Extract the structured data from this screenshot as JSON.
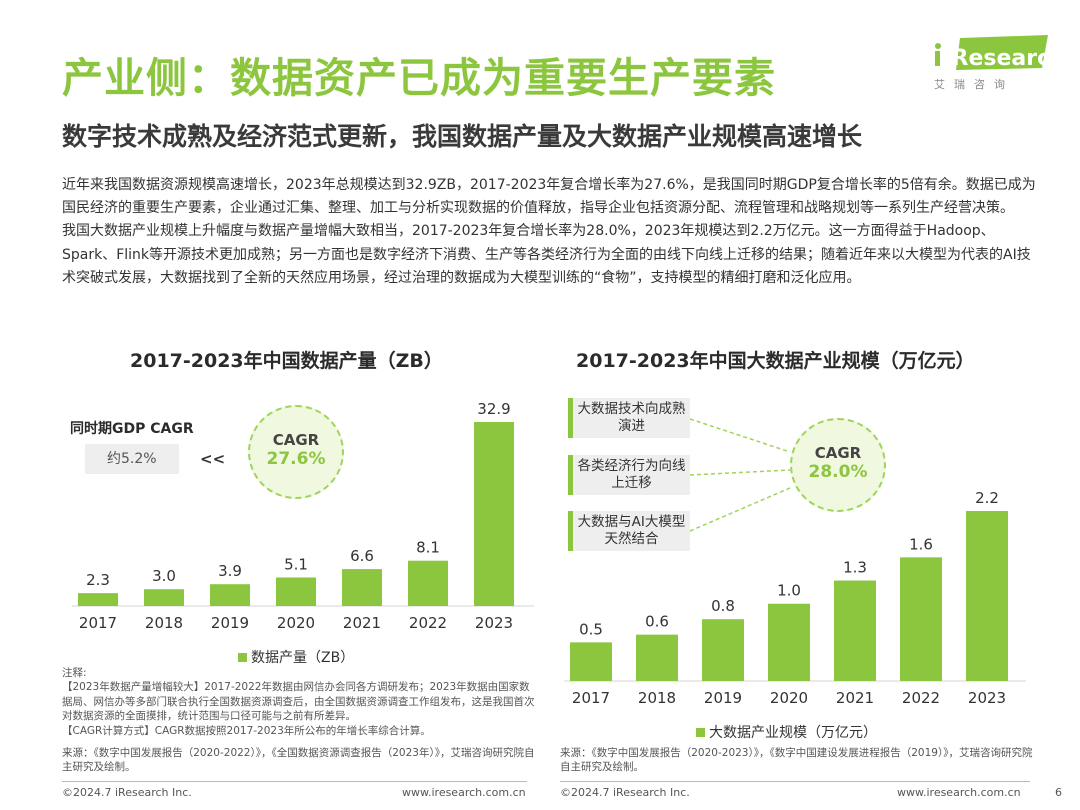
{
  "title": "产业侧：数据资产已成为重要生产要素",
  "subtitle": "数字技术成熟及经济范式更新，我国数据产量及大数据产业规模高速增长",
  "logo": {
    "brand": "iResearch",
    "cn": "艾瑞咨询"
  },
  "intro": [
    "近年来我国数据资源规模高速增长，2023年总规模达到32.9ZB，2017-2023年复合增长率为27.6%，是我国同时期GDP复合增长率的5倍有余。数据已成为国民经济的重要生产要素，企业通过汇集、整理、加工与分析实现数据的价值释放，指导企业包括资源分配、流程管理和战略规划等一系列生产经营决策。",
    "我国大数据产业规模上升幅度与数据产量增幅大致相当，2017-2023年复合增长率为28.0%，2023年规模达到2.2万亿元。这一方面得益于Hadoop、Spark、Flink等开源技术更加成熟；另一方面也是数字经济下消费、生产等各类经济行为全面的由线下向线上迁移的结果；随着近年来以大模型为代表的AI技术突破式发展，大数据找到了全新的天然应用场景，经过治理的数据成为大模型训练的“食物”，支持模型的精细打磨和泛化应用。"
  ],
  "left_panel": {
    "gdp_label": "同时期GDP CAGR",
    "gdp_value": "约5.2%",
    "compare": "<<",
    "cagr_label": "CAGR",
    "cagr_value": "27.6%",
    "legend": "数据产量（ZB）",
    "notes": [
      "注释:",
      "【2023年数据产量增幅较大】2017-2022年数据由网信办会同各方调研发布；2023年数据由国家数据局、网信办等多部门联合执行全国数据资源调查后，由全国数据资源调查工作组发布，这是我国首次对数据资源的全面摸排，统计范围与口径可能与之前有所差异。",
      "【CAGR计算方式】CAGR数据按照2017-2023年所公布的年增长率综合计算。"
    ],
    "source": "来源：《数字中国发展报告（2020-2022）》，《全国数据资源调查报告（2023年）》，艾瑞咨询研究院自主研究及绘制。"
  },
  "right_panel": {
    "drivers": [
      "大数据技术向成熟演进",
      "各类经济行为向线上迁移",
      "大数据与AI大模型天然结合"
    ],
    "cagr_label": "CAGR",
    "cagr_value": "28.0%",
    "legend": "大数据产业规模（万亿元）",
    "source": "来源：《数字中国发展报告（2020-2023）》，《数字中国建设发展进程报告（2019）》，艾瑞咨询研究院自主研究及绘制。"
  },
  "footer": {
    "copyright": "©2024.7 iResearch Inc.",
    "url": "www.iresearch.com.cn",
    "page": "6"
  },
  "colors": {
    "accent": "#8cc63f",
    "text": "#333333"
  },
  "chart_data": [
    {
      "type": "bar",
      "title": "2017-2023年中国数据产量（ZB）",
      "categories": [
        "2017",
        "2018",
        "2019",
        "2020",
        "2021",
        "2022",
        "2023"
      ],
      "series": [
        {
          "name": "数据产量（ZB）",
          "values": [
            2.3,
            3.0,
            3.9,
            5.1,
            6.6,
            8.1,
            32.9
          ]
        }
      ],
      "value_labels": [
        "2.3",
        "3.0",
        "3.9",
        "5.1",
        "6.6",
        "8.1",
        "32.9"
      ],
      "ylim": [
        0,
        32.9
      ]
    },
    {
      "type": "bar",
      "title": "2017-2023年中国大数据产业规模（万亿元）",
      "categories": [
        "2017",
        "2018",
        "2019",
        "2020",
        "2021",
        "2022",
        "2023"
      ],
      "series": [
        {
          "name": "大数据产业规模（万亿元）",
          "values": [
            0.5,
            0.6,
            0.8,
            1.0,
            1.3,
            1.6,
            2.2
          ]
        }
      ],
      "value_labels": [
        "0.5",
        "0.6",
        "0.8",
        "1.0",
        "1.3",
        "1.6",
        "2.2"
      ],
      "ylim": [
        0,
        2.2
      ]
    }
  ]
}
